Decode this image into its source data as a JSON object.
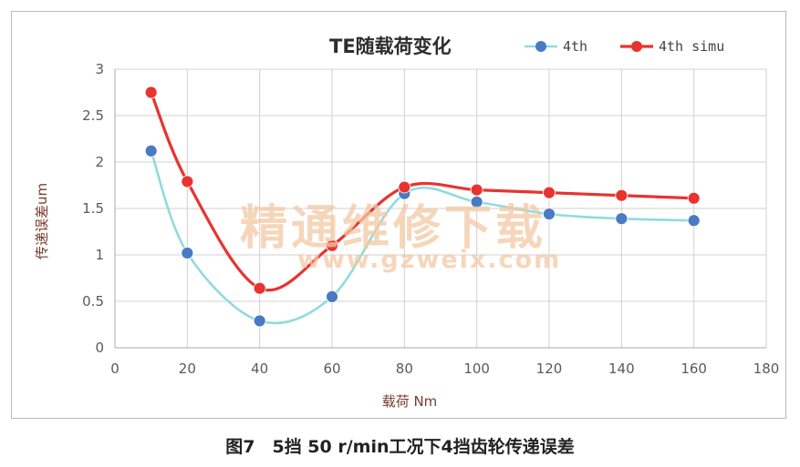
{
  "caption": "图7　5挡 50 r/min工况下4挡齿轮传递误差",
  "watermark": {
    "cn": "精通维修下载",
    "url": "www.gzweix.com"
  },
  "chart_data": {
    "type": "line",
    "title": "TE随载荷变化",
    "xlabel": "载荷 Nm",
    "ylabel": "传递误差um",
    "xlim": [
      0,
      180
    ],
    "ylim": [
      0,
      3
    ],
    "x_ticks": [
      "0",
      "20",
      "40",
      "60",
      "80",
      "100",
      "120",
      "140",
      "160",
      "180"
    ],
    "y_ticks": [
      "0",
      "0.5",
      "1",
      "1.5",
      "2",
      "2.5",
      "3"
    ],
    "grid": true,
    "legend_position": "top-right",
    "series": [
      {
        "name": "4th",
        "color": "#8fdbe0",
        "marker_color": "#4a7ac4",
        "x": [
          10,
          20,
          40,
          60,
          80,
          100,
          120,
          140,
          160
        ],
        "y": [
          2.12,
          1.02,
          0.29,
          0.55,
          1.66,
          1.57,
          1.44,
          1.39,
          1.37
        ]
      },
      {
        "name": "4th simu",
        "color": "#e8332f",
        "marker_color": "#e8332f",
        "x": [
          10,
          20,
          40,
          60,
          80,
          100,
          120,
          140,
          160
        ],
        "y": [
          2.75,
          1.79,
          0.64,
          1.1,
          1.73,
          1.7,
          1.67,
          1.64,
          1.61
        ]
      }
    ]
  }
}
